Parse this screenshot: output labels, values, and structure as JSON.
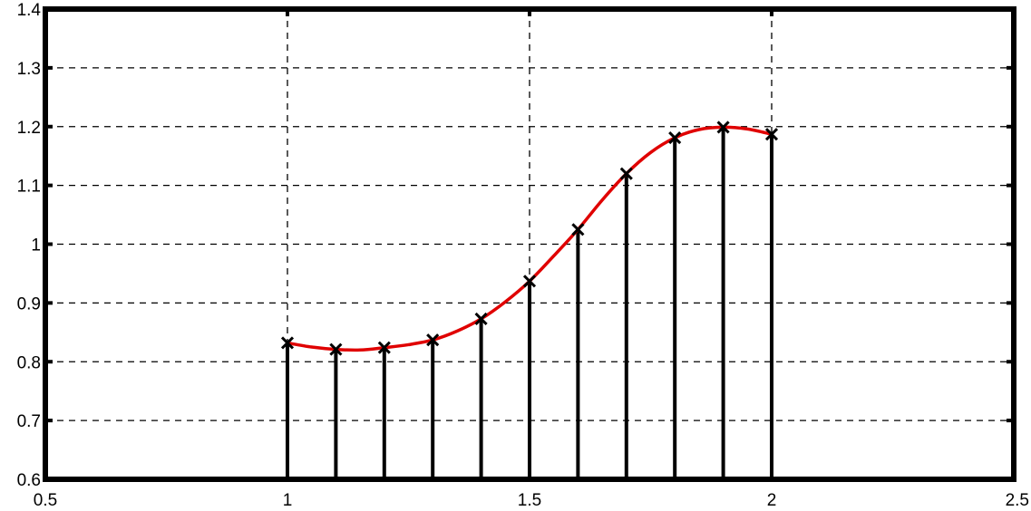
{
  "chart_data": {
    "type": "line",
    "title": "",
    "xlabel": "",
    "ylabel": "",
    "xlim": [
      0.5,
      2.5
    ],
    "ylim": [
      0.6,
      1.4
    ],
    "grid": true,
    "x_ticks": [
      "0.5",
      "1",
      "1.5",
      "2",
      "2.5"
    ],
    "y_ticks": [
      "0.6",
      "0.7",
      "0.8",
      "0.9",
      "1",
      "1.1",
      "1.2",
      "1.3",
      "1.4"
    ],
    "x_grid": [
      1,
      1.5,
      2
    ],
    "series": [
      {
        "kind": "stem",
        "marker": "x",
        "color": "#000000",
        "x": [
          1.0,
          1.1,
          1.2,
          1.3,
          1.4,
          1.5,
          1.6,
          1.7,
          1.8,
          1.9,
          2.0
        ],
        "y": [
          0.832,
          0.821,
          0.824,
          0.837,
          0.873,
          0.937,
          1.025,
          1.12,
          1.181,
          1.199,
          1.187
        ]
      },
      {
        "kind": "curve",
        "color": "#e00000",
        "x": [
          1.0,
          1.05,
          1.1,
          1.15,
          1.2,
          1.25,
          1.3,
          1.35,
          1.4,
          1.45,
          1.5,
          1.55,
          1.6,
          1.65,
          1.7,
          1.75,
          1.8,
          1.85,
          1.9,
          1.95,
          2.0
        ],
        "y": [
          0.832,
          0.825,
          0.821,
          0.82,
          0.824,
          0.829,
          0.837,
          0.852,
          0.873,
          0.902,
          0.937,
          0.98,
          1.025,
          1.075,
          1.12,
          1.156,
          1.181,
          1.195,
          1.199,
          1.196,
          1.187
        ]
      }
    ]
  }
}
